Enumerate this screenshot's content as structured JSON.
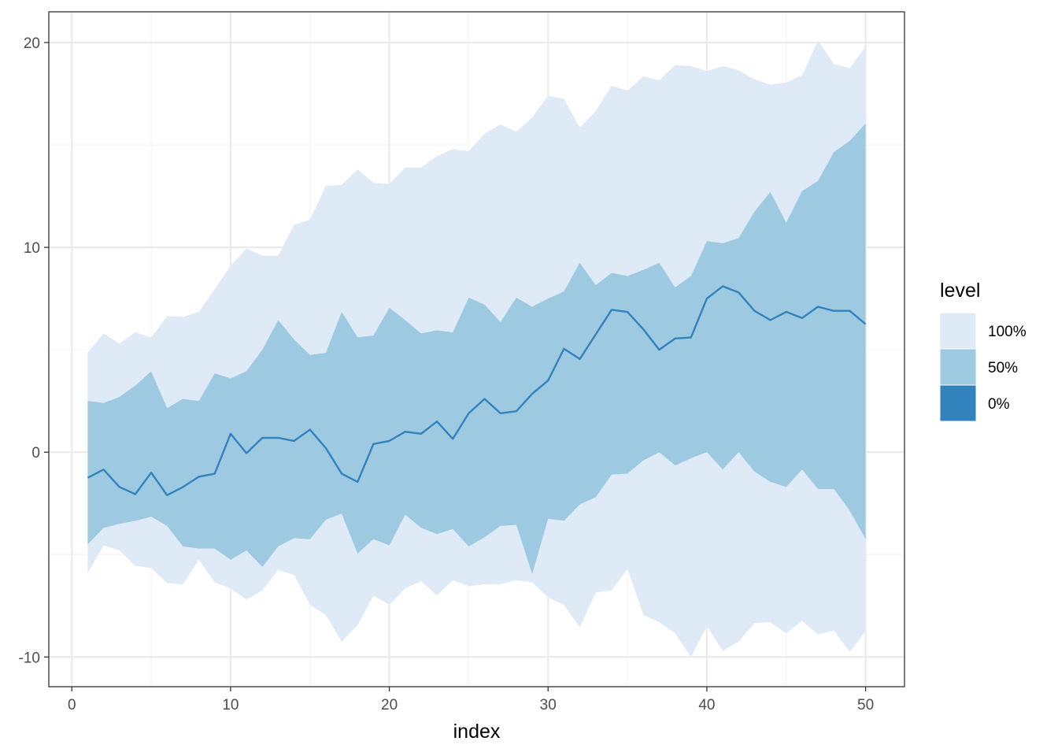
{
  "chart_data": {
    "type": "area",
    "x": [
      1,
      2,
      3,
      4,
      5,
      6,
      7,
      8,
      9,
      10,
      11,
      12,
      13,
      14,
      15,
      16,
      17,
      18,
      19,
      20,
      21,
      22,
      23,
      24,
      25,
      26,
      27,
      28,
      29,
      30,
      31,
      32,
      33,
      34,
      35,
      36,
      37,
      38,
      39,
      40,
      41,
      42,
      43,
      44,
      45,
      46,
      47,
      48,
      49,
      50
    ],
    "series": [
      {
        "name": "0%",
        "values": [
          -1.25,
          -0.85,
          -1.7,
          -2.05,
          -1.0,
          -2.1,
          -1.7,
          -1.2,
          -1.05,
          0.9,
          -0.05,
          0.7,
          0.7,
          0.55,
          1.1,
          0.2,
          -1.05,
          -1.45,
          0.4,
          0.55,
          1.0,
          0.9,
          1.5,
          0.65,
          1.9,
          2.6,
          1.9,
          2.0,
          2.85,
          3.5,
          5.05,
          4.55,
          5.75,
          6.95,
          6.85,
          6.0,
          5.0,
          5.55,
          5.6,
          7.5,
          8.1,
          7.8,
          6.9,
          6.45,
          6.85,
          6.55,
          7.1,
          6.9,
          6.9,
          6.25
        ]
      },
      {
        "name": "50%",
        "lower": [
          -4.5,
          -3.7,
          -3.5,
          -3.35,
          -3.15,
          -3.6,
          -4.6,
          -4.7,
          -4.7,
          -5.25,
          -4.8,
          -5.6,
          -4.6,
          -4.2,
          -4.25,
          -3.3,
          -3.0,
          -4.95,
          -4.25,
          -4.55,
          -3.05,
          -3.7,
          -4.0,
          -3.75,
          -4.6,
          -4.15,
          -3.6,
          -3.55,
          -5.95,
          -3.25,
          -3.35,
          -2.55,
          -2.2,
          -1.1,
          -1.05,
          -0.4,
          0.0,
          -0.65,
          -0.3,
          0.0,
          -0.85,
          0.0,
          -0.95,
          -1.45,
          -1.7,
          -0.85,
          -1.8,
          -1.8,
          -2.85,
          -4.25
        ],
        "upper": [
          2.5,
          2.4,
          2.7,
          3.25,
          3.95,
          2.15,
          2.6,
          2.5,
          3.85,
          3.6,
          3.95,
          5.0,
          6.45,
          5.5,
          4.75,
          4.85,
          6.85,
          5.6,
          5.7,
          7.05,
          6.45,
          5.8,
          5.95,
          5.85,
          7.55,
          7.2,
          6.35,
          7.55,
          7.1,
          7.5,
          7.85,
          9.25,
          8.15,
          8.75,
          8.6,
          8.9,
          9.25,
          8.05,
          8.6,
          10.3,
          10.2,
          10.45,
          11.75,
          12.7,
          11.2,
          12.75,
          13.25,
          14.65,
          15.2,
          16.05
        ]
      },
      {
        "name": "100%",
        "lower": [
          -5.9,
          -4.55,
          -4.8,
          -5.55,
          -5.65,
          -6.4,
          -6.45,
          -5.25,
          -6.35,
          -6.65,
          -7.2,
          -6.75,
          -5.75,
          -6.0,
          -7.45,
          -7.95,
          -9.25,
          -8.45,
          -7.0,
          -7.45,
          -6.65,
          -6.3,
          -7.0,
          -6.25,
          -6.55,
          -6.45,
          -6.45,
          -6.25,
          -6.35,
          -7.1,
          -7.45,
          -8.55,
          -6.85,
          -6.75,
          -5.7,
          -7.95,
          -8.3,
          -8.85,
          -10.0,
          -8.5,
          -9.7,
          -9.25,
          -8.35,
          -8.3,
          -8.85,
          -8.25,
          -8.9,
          -8.7,
          -9.75,
          -8.75
        ],
        "upper": [
          4.85,
          5.8,
          5.3,
          5.85,
          5.6,
          6.65,
          6.6,
          6.85,
          7.95,
          9.1,
          9.95,
          9.6,
          9.6,
          11.1,
          11.35,
          13.0,
          13.05,
          13.8,
          13.15,
          13.1,
          13.9,
          13.9,
          14.45,
          14.8,
          14.7,
          15.55,
          16.0,
          15.65,
          16.35,
          17.4,
          17.25,
          15.85,
          16.65,
          17.9,
          17.65,
          18.35,
          18.15,
          18.9,
          18.85,
          18.6,
          18.85,
          18.65,
          18.2,
          17.95,
          18.05,
          18.4,
          20.1,
          18.95,
          18.75,
          19.8
        ]
      }
    ],
    "xlabel": "index",
    "ylabel": "",
    "xlim": [
      -1.45,
      52.45
    ],
    "ylim": [
      -11.45,
      21.5
    ],
    "xticks": [
      0,
      10,
      20,
      30,
      40,
      50
    ],
    "yticks": [
      -10,
      0,
      10,
      20
    ],
    "minor_xticks": [
      5,
      15,
      25,
      35,
      45
    ],
    "minor_yticks": [
      -5,
      5,
      15
    ],
    "grid": true,
    "legend": {
      "title": "level",
      "placement": "right",
      "entries": [
        "100%",
        "50%",
        "0%"
      ]
    },
    "colors": {
      "band_100": "#deebf7",
      "band_50": "#9ecae1",
      "line_0": "#3182bd",
      "grid_major": "#ebebeb",
      "grid_minor": "#f5f5f5",
      "panel_border": "#333333"
    }
  }
}
